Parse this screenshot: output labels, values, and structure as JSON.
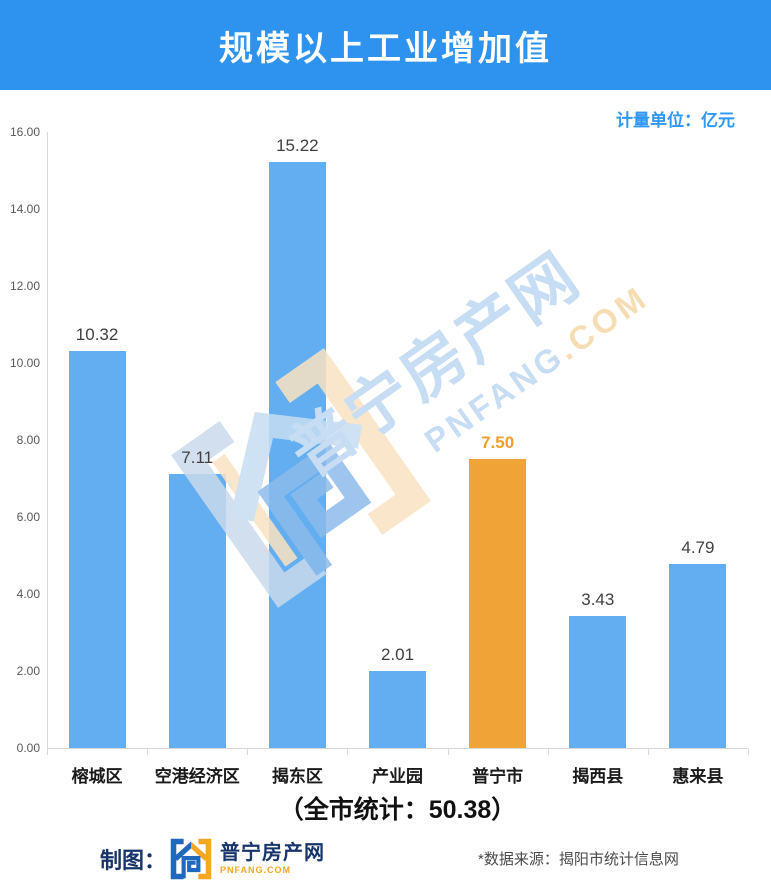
{
  "header": {
    "title": "规模以上工业增加值",
    "bg_color": "#2E93EE"
  },
  "unit_label": "计量单位：亿元",
  "chart_data": {
    "type": "bar",
    "title": "规模以上工业增加值",
    "ylabel": "亿元",
    "xlabel": "",
    "categories": [
      "榕城区",
      "空港经济区",
      "揭东区",
      "产业园",
      "普宁市",
      "揭西县",
      "惠来县"
    ],
    "values": [
      10.32,
      7.11,
      15.22,
      2.01,
      7.5,
      3.43,
      4.79
    ],
    "value_labels": [
      "10.32",
      "7.11",
      "15.22",
      "2.01",
      "7.50",
      "3.43",
      "4.79"
    ],
    "highlight_index": 4,
    "bar_color": "#63AEF0",
    "highlight_color": "#F0A438",
    "ylim": [
      0,
      16
    ],
    "yticks": [
      "0.00",
      "2.00",
      "4.00",
      "6.00",
      "8.00",
      "10.00",
      "12.00",
      "14.00",
      "16.00"
    ],
    "grid": false,
    "legend": "none"
  },
  "summary": "（全市统计：50.38）",
  "watermark": {
    "text": "普宁房产网",
    "sub": "PNFANG",
    "sub_suffix": ".COM"
  },
  "footer": {
    "credit_label": "制图：",
    "logo_text": "普宁房产网",
    "logo_sub": "PNFANG.COM",
    "source": "*数据来源：揭阳市统计信息网"
  },
  "colors": {
    "banner_blue": "#2E93EE",
    "bar_blue": "#63AEF0",
    "bar_orange": "#F0A438",
    "unit_text_blue": "#2F97F5",
    "axis_gray": "#D9D9D9",
    "navy_text": "#17356B",
    "logo_orange": "#F5A623"
  }
}
